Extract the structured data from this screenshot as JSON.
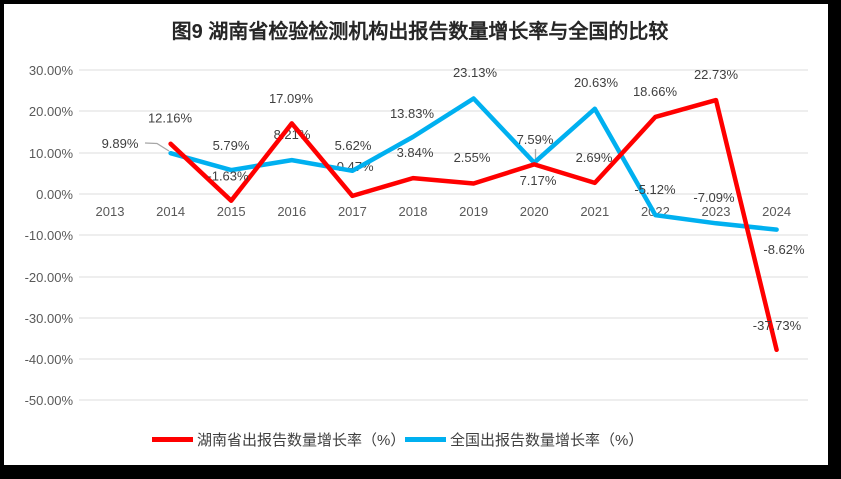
{
  "window": {
    "background_color": "#000000",
    "chart_background": "#FFFFFF"
  },
  "chart_data": {
    "type": "line",
    "title": "图9 湖南省检验检测机构出报告数量增长率与全国的比较",
    "categories": [
      "2013",
      "2014",
      "2015",
      "2016",
      "2017",
      "2018",
      "2019",
      "2020",
      "2021",
      "2022",
      "2023",
      "2024"
    ],
    "series": [
      {
        "name": "湖南省出报告数量增长率（%）",
        "color": "#FF0000",
        "first_category": "2014",
        "values": [
          12.16,
          -1.63,
          17.09,
          -0.47,
          3.84,
          2.55,
          7.17,
          2.69,
          18.66,
          22.73,
          -37.73
        ],
        "labels": [
          "12.16%",
          "-1.63%",
          "17.09%",
          "-0.47%",
          "3.84%",
          "2.55%",
          "7.17%",
          "2.69%",
          "18.66%",
          "22.73%",
          "-37.73%"
        ]
      },
      {
        "name": "全国出报告数量增长率（%）",
        "color": "#00B0F0",
        "first_category": "2014",
        "values": [
          9.89,
          5.79,
          8.21,
          5.62,
          13.83,
          23.13,
          7.59,
          20.63,
          -5.12,
          -7.09,
          -8.62
        ],
        "labels": [
          "9.89%",
          "5.79%",
          "8.21%",
          "5.62%",
          "13.83%",
          "23.13%",
          "7.59%",
          "20.63%",
          "-5.12%",
          "-7.09%",
          "-8.62%"
        ]
      }
    ],
    "y_axis": {
      "ticks": [
        "30.00%",
        "20.00%",
        "10.00%",
        "0.00%",
        "-10.00%",
        "-20.00%",
        "-30.00%",
        "-40.00%",
        "-50.00%"
      ],
      "min": -50,
      "max": 30,
      "step": 10,
      "format": "percent"
    },
    "grid": true,
    "legend_position": "bottom",
    "colors": {
      "gridline": "#DCDCDC",
      "axis_text": "#595959",
      "data_label_text": "#404040",
      "title_text": "#262626",
      "leader_line": "#A6A6A6"
    }
  }
}
